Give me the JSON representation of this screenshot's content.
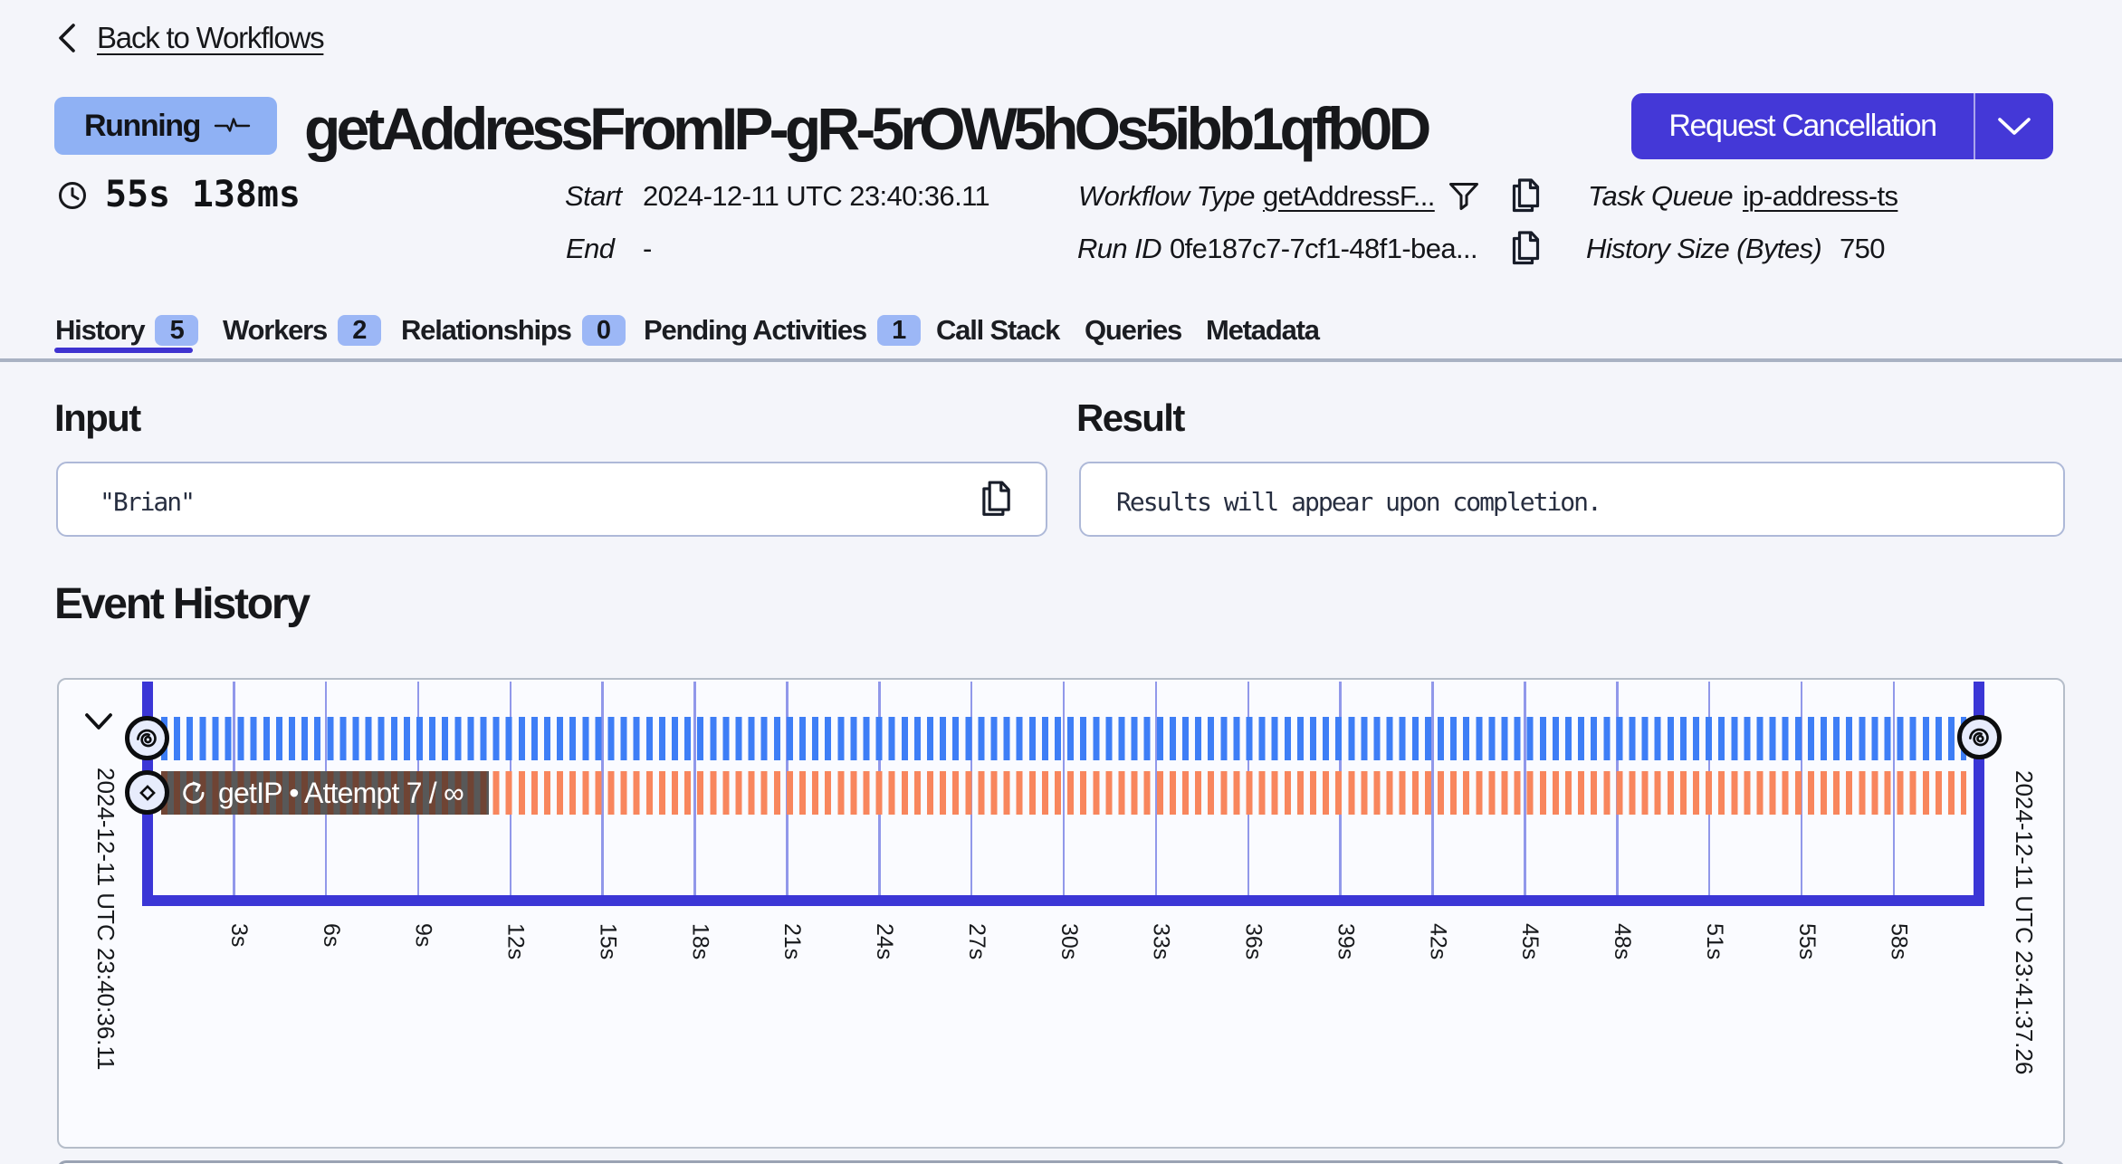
{
  "header": {
    "back_label": "Back to Workflows",
    "status": "Running",
    "workflow_title": "getAddressFromIP-gR-5rOW5hOs5ibb1qfb0D",
    "cancel_button_label": "Request Cancellation",
    "duration": "55s 138ms",
    "meta": {
      "start_label": "Start",
      "start_value": "2024-12-11 UTC 23:40:36.11",
      "end_label": "End",
      "end_value": "-",
      "workflow_type_label": "Workflow Type",
      "workflow_type_value": "getAddressF...",
      "run_id_label": "Run ID",
      "run_id_value": "0fe187c7-7cf1-48f1-bea...",
      "task_queue_label": "Task Queue",
      "task_queue_value": "ip-address-ts",
      "history_size_label": "History Size (Bytes)",
      "history_size_value": "750"
    }
  },
  "tabs": [
    {
      "label": "History",
      "count": "5",
      "active": true
    },
    {
      "label": "Workers",
      "count": "2"
    },
    {
      "label": "Relationships",
      "count": "0"
    },
    {
      "label": "Pending Activities",
      "count": "1"
    },
    {
      "label": "Call Stack"
    },
    {
      "label": "Queries"
    },
    {
      "label": "Metadata"
    }
  ],
  "input_section": {
    "title": "Input",
    "value": "\"Brian\""
  },
  "result_section": {
    "title": "Result",
    "value": "Results will appear upon completion."
  },
  "event_history": {
    "title": "Event History",
    "timeline": {
      "start_time": "2024-12-11 UTC 23:40:36.11",
      "end_time": "2024-12-11 UTC 23:41:37.26",
      "ticks": [
        "3s",
        "6s",
        "9s",
        "12s",
        "15s",
        "18s",
        "21s",
        "24s",
        "27s",
        "30s",
        "33s",
        "36s",
        "39s",
        "42s",
        "45s",
        "48s",
        "51s",
        "55s",
        "58s"
      ],
      "rows": [
        {
          "name": "workflow-execution",
          "style": "blue-dashed"
        },
        {
          "name": "activity",
          "style": "orange-dashed",
          "label": "getIP • Attempt 7 / ∞"
        }
      ]
    }
  },
  "colors": {
    "accent_indigo": "#4438d7",
    "status_badge_blue": "#8fb1f4",
    "tab_badge_blue": "#9cb7f6",
    "timeline_blue_dash": "#3e7ef6",
    "timeline_orange_dash": "#f8865d",
    "timeline_axis": "#3b36d6",
    "gridline": "#9aa1ed",
    "page_background": "#f4f5fa"
  }
}
